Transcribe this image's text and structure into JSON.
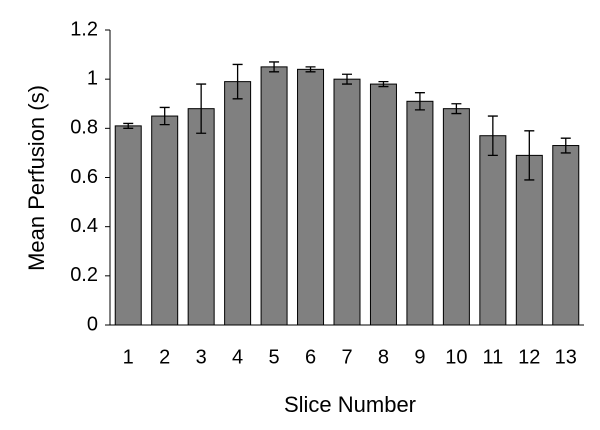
{
  "chart_data": {
    "type": "bar",
    "x_label": "Slice Number",
    "y_label": "Mean Perfusion (s)",
    "categories": [
      "1",
      "2",
      "3",
      "4",
      "5",
      "6",
      "7",
      "8",
      "9",
      "10",
      "11",
      "12",
      "13"
    ],
    "values": [
      0.81,
      0.85,
      0.88,
      0.99,
      1.05,
      1.04,
      1.0,
      0.98,
      0.91,
      0.88,
      0.77,
      0.69,
      0.73
    ],
    "errors": [
      0.01,
      0.035,
      0.1,
      0.07,
      0.02,
      0.01,
      0.02,
      0.01,
      0.035,
      0.02,
      0.08,
      0.1,
      0.03
    ],
    "color": "#808080",
    "ylim": [
      0,
      1.2
    ],
    "yticks": [
      0,
      0.2,
      0.4,
      0.6,
      0.8,
      1,
      1.2
    ],
    "grid": false
  }
}
